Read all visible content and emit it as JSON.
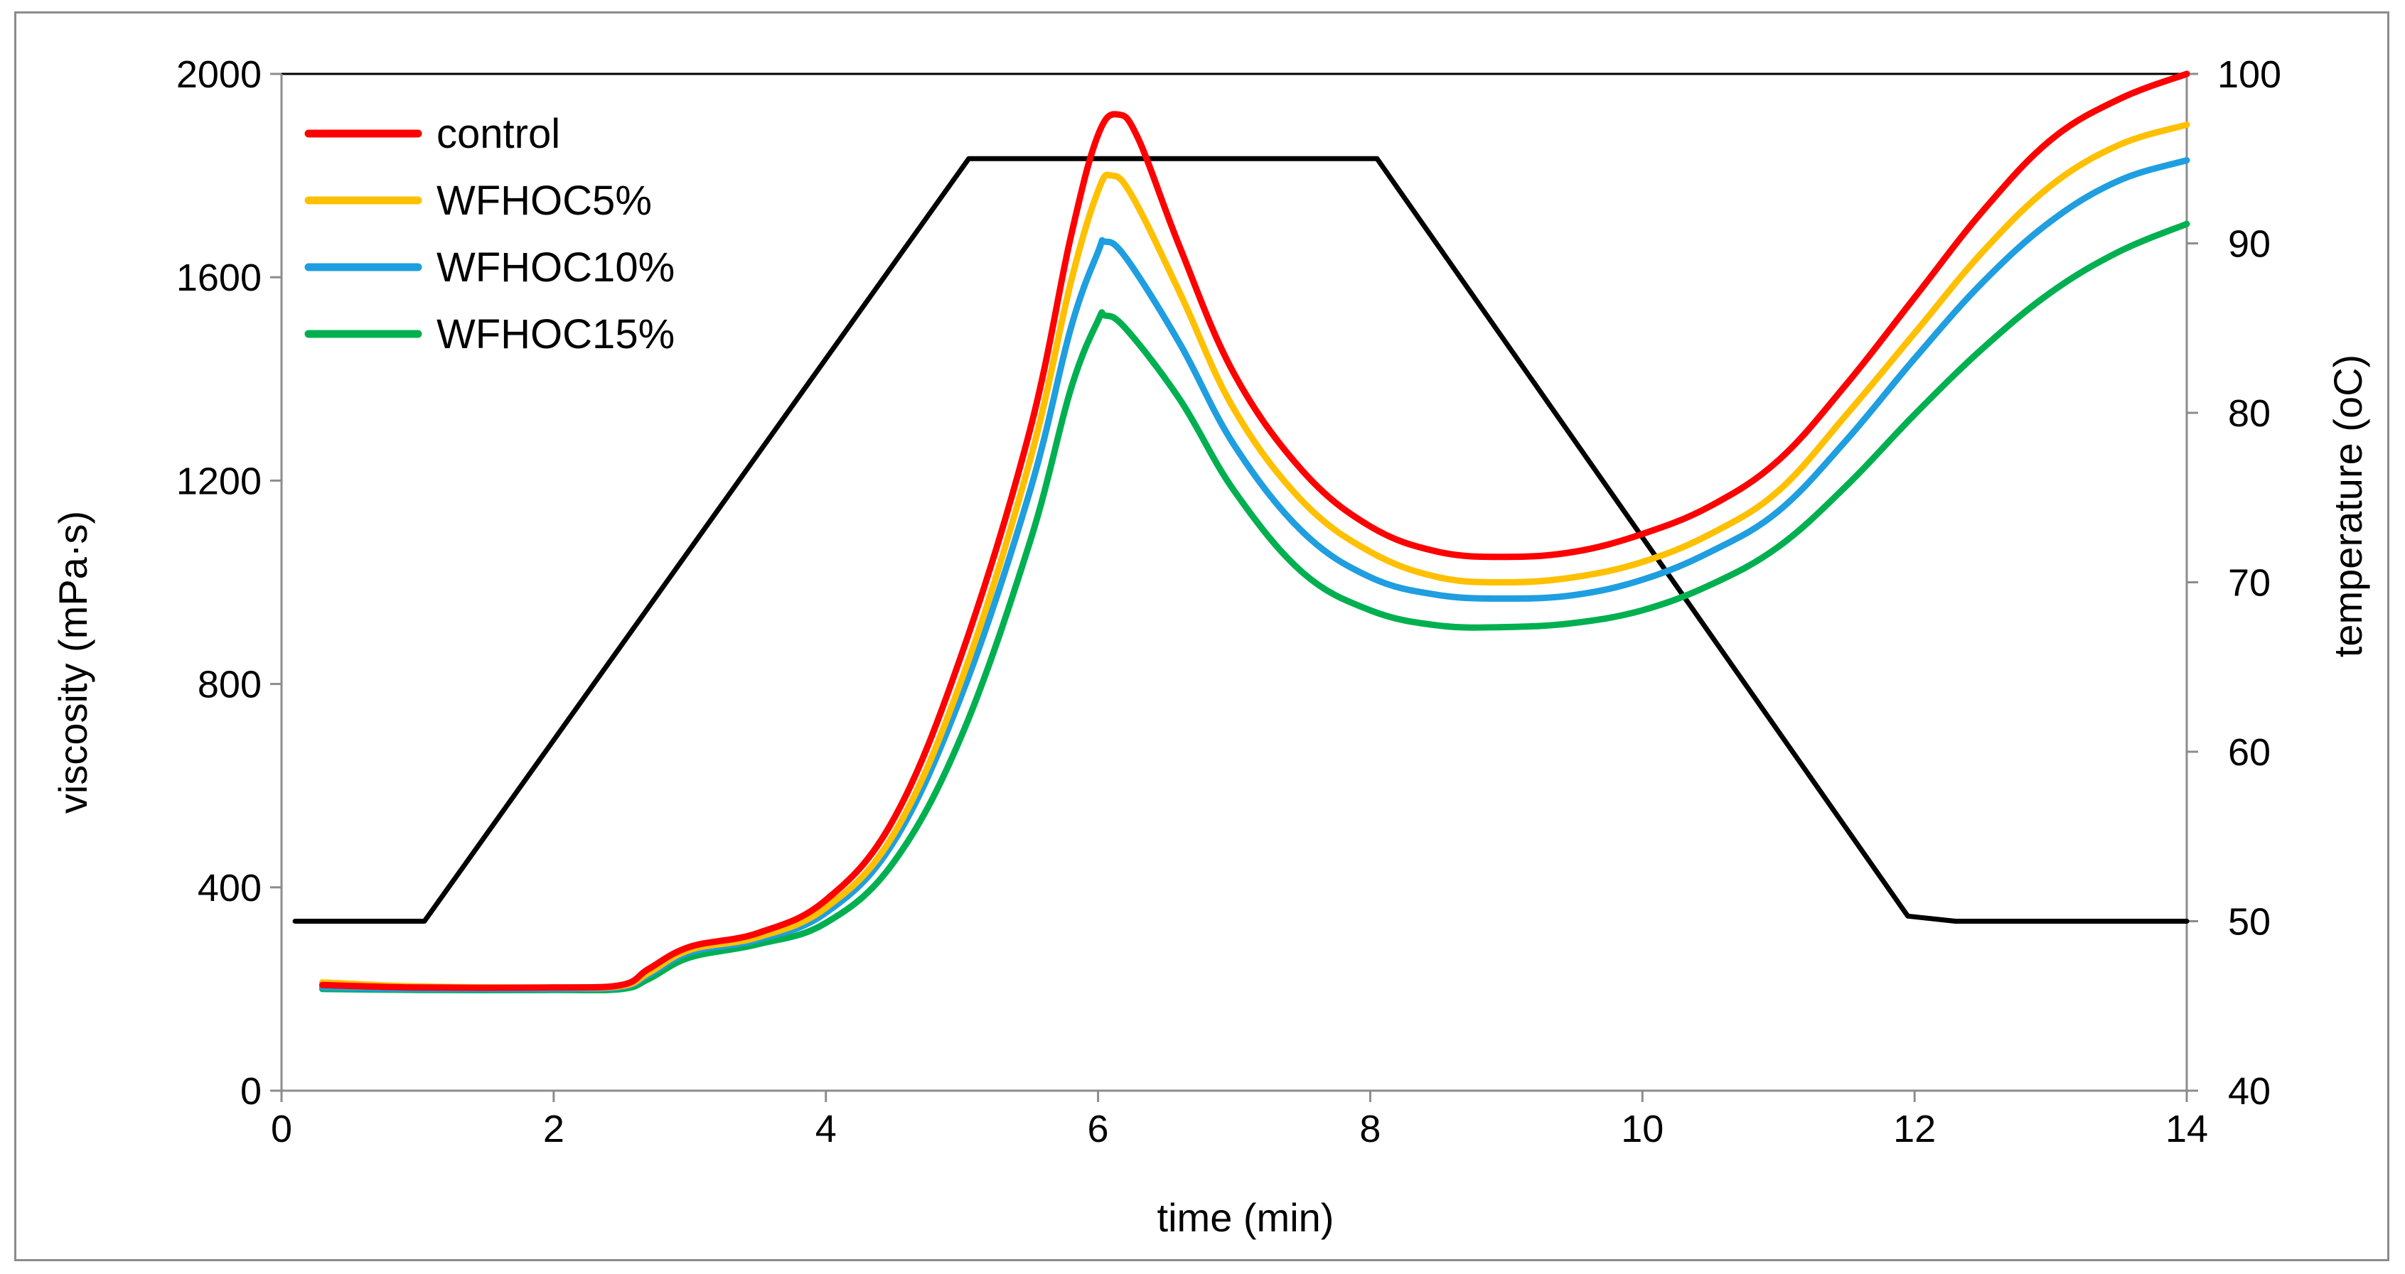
{
  "chart_data": {
    "type": "line",
    "title": "",
    "xlabel": "time (min)",
    "ylabel": "viscosity (mPa·s)",
    "y2label": "temperature (oC)",
    "xlim": [
      0,
      14
    ],
    "ylim": [
      0,
      2000
    ],
    "y2lim": [
      40,
      100
    ],
    "x_ticks": [
      0,
      2,
      4,
      6,
      8,
      10,
      12,
      14
    ],
    "y_ticks": [
      0,
      400,
      800,
      1200,
      1600,
      2000
    ],
    "y2_ticks": [
      40,
      50,
      60,
      70,
      80,
      90,
      100
    ],
    "x_tick_labels": [
      "0",
      "2",
      "4",
      "6",
      "8",
      "10",
      "12",
      "14"
    ],
    "y_tick_labels": [
      "0",
      "400",
      "800",
      "1200",
      "1600",
      "2000"
    ],
    "y2_tick_labels": [
      "40",
      "50",
      "60",
      "70",
      "80",
      "90",
      "100"
    ],
    "grid": false,
    "legend_position": "top-left",
    "series": [
      {
        "name": "control",
        "color": "#ff0000",
        "axis": "left",
        "x": [
          0.3,
          1.0,
          2.0,
          2.5,
          2.7,
          3.0,
          3.5,
          4.0,
          4.5,
          5.0,
          5.5,
          5.8,
          6.0,
          6.15,
          6.3,
          6.6,
          7.0,
          7.5,
          8.0,
          8.5,
          9.0,
          9.5,
          10.0,
          10.5,
          11.0,
          11.5,
          12.0,
          12.5,
          13.0,
          13.5,
          14.0
        ],
        "y": [
          208,
          203,
          203,
          208,
          240,
          283,
          310,
          375,
          535,
          860,
          1300,
          1680,
          1880,
          1920,
          1870,
          1660,
          1410,
          1220,
          1110,
          1060,
          1050,
          1060,
          1095,
          1150,
          1240,
          1390,
          1560,
          1730,
          1870,
          1950,
          2000
        ]
      },
      {
        "name": "WFHOC5%",
        "color": "#ffc000",
        "axis": "left",
        "x": [
          0.3,
          1.0,
          2.0,
          2.5,
          2.7,
          3.0,
          3.5,
          4.0,
          4.5,
          5.0,
          5.5,
          5.8,
          6.0,
          6.1,
          6.25,
          6.6,
          7.0,
          7.5,
          8.0,
          8.5,
          9.0,
          9.5,
          10.0,
          10.5,
          11.0,
          11.5,
          12.0,
          12.5,
          13.0,
          13.5,
          14.0
        ],
        "y": [
          213,
          205,
          203,
          206,
          232,
          277,
          302,
          360,
          505,
          810,
          1240,
          1590,
          1770,
          1800,
          1760,
          1570,
          1340,
          1160,
          1060,
          1010,
          1000,
          1010,
          1040,
          1095,
          1180,
          1330,
          1490,
          1650,
          1780,
          1860,
          1900
        ]
      },
      {
        "name": "WFHOC10%",
        "color": "#1f9ee0",
        "axis": "left",
        "x": [
          0.3,
          1.0,
          2.0,
          2.5,
          2.7,
          3.0,
          3.5,
          4.0,
          4.5,
          5.0,
          5.5,
          5.8,
          6.0,
          6.05,
          6.2,
          6.6,
          7.0,
          7.5,
          8.0,
          8.5,
          9.0,
          9.5,
          10.0,
          10.5,
          11.0,
          11.5,
          12.0,
          12.5,
          13.0,
          13.5,
          14.0
        ],
        "y": [
          203,
          200,
          200,
          204,
          228,
          272,
          297,
          350,
          490,
          780,
          1180,
          1500,
          1650,
          1670,
          1640,
          1470,
          1270,
          1100,
          1010,
          975,
          968,
          975,
          1005,
          1060,
          1140,
          1280,
          1440,
          1590,
          1710,
          1790,
          1830
        ]
      },
      {
        "name": "WFHOC15%",
        "color": "#00b050",
        "axis": "left",
        "x": [
          0.3,
          1.0,
          2.0,
          2.5,
          2.7,
          3.0,
          3.5,
          4.0,
          4.5,
          5.0,
          5.5,
          5.8,
          6.0,
          6.05,
          6.2,
          6.6,
          7.0,
          7.5,
          8.0,
          8.5,
          9.0,
          9.5,
          10.0,
          10.5,
          11.0,
          11.5,
          12.0,
          12.5,
          13.0,
          13.5,
          14.0
        ],
        "y": [
          200,
          198,
          198,
          200,
          220,
          262,
          288,
          330,
          450,
          700,
          1080,
          1380,
          1515,
          1525,
          1500,
          1360,
          1180,
          1020,
          945,
          915,
          912,
          920,
          945,
          995,
          1070,
          1190,
          1330,
          1460,
          1570,
          1650,
          1705
        ]
      },
      {
        "name": "temperature",
        "color": "#000000",
        "axis": "right",
        "x": [
          0.1,
          1.05,
          5.05,
          8.05,
          11.95,
          12.3,
          14.0
        ],
        "y": [
          50,
          50,
          95,
          95,
          50.3,
          50,
          50
        ]
      }
    ]
  }
}
